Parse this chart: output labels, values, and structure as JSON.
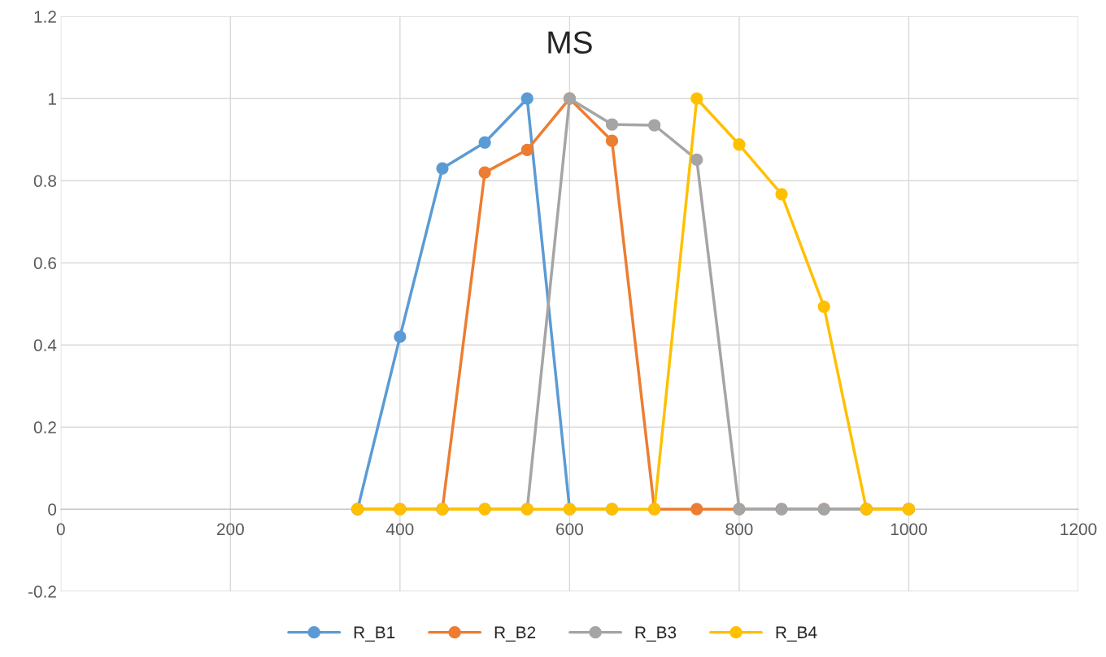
{
  "chart_data": {
    "type": "line",
    "title": "MS",
    "x": [
      350,
      400,
      450,
      500,
      550,
      600,
      650,
      700,
      750,
      800,
      850,
      900,
      950,
      1000
    ],
    "series": [
      {
        "name": "R_B1",
        "color": "#5b9bd5",
        "values": [
          0,
          0.42,
          0.83,
          0.893,
          1.0,
          0,
          0,
          null,
          null,
          null,
          null,
          null,
          null,
          null
        ]
      },
      {
        "name": "R_B2",
        "color": "#ed7d31",
        "values": [
          0,
          0,
          0,
          0.82,
          0.875,
          1.0,
          0.897,
          0,
          0,
          0,
          0,
          0,
          0,
          0
        ]
      },
      {
        "name": "R_B3",
        "color": "#a5a5a5",
        "values": [
          null,
          null,
          0,
          0,
          0,
          1.0,
          0.937,
          0.935,
          0.851,
          0,
          0,
          0,
          0,
          0
        ]
      },
      {
        "name": "R_B4",
        "color": "#ffc000",
        "values": [
          0,
          0,
          0,
          0,
          0,
          0,
          0,
          0,
          1.0,
          0.888,
          0.767,
          0.493,
          0,
          0
        ]
      }
    ],
    "xlim": [
      0,
      1200
    ],
    "xticks": [
      0,
      200,
      400,
      600,
      800,
      1000,
      1200
    ],
    "ylim": [
      -0.2,
      1.2
    ],
    "yticks": [
      -0.2,
      0,
      0.2,
      0.4,
      0.6,
      0.8,
      1,
      1.2
    ],
    "grid": true,
    "legend": "bottom",
    "marker": "circle",
    "line_style": "solid"
  }
}
